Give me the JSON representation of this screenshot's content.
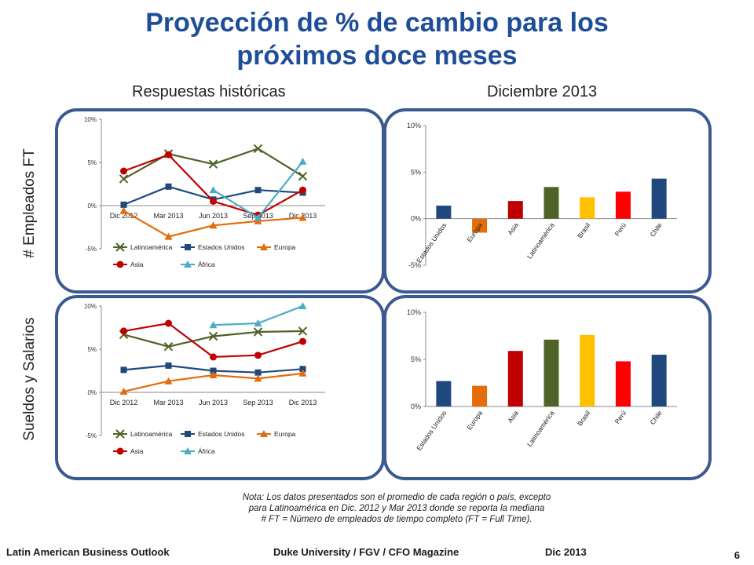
{
  "title_line1": "Proyección de % de cambio para los",
  "title_line2": "próximos doce meses",
  "left_header": "Respuestas históricas",
  "right_header": "Diciembre 2013",
  "row_label_top": "# Empleados FT",
  "row_label_bottom": "Sueldos y Salarios",
  "note_line1": "Nota:  Los datos presentados son el promedio de cada región o país, excepto",
  "note_line2": "para Latinoamérica en Dic. 2012 y Mar 2013 donde se reporta la mediana",
  "note_line3": "# FT = Número de empleados de tiempo completo (FT = Full Time).",
  "footer": {
    "left": "Latin American Business Outlook",
    "middle": "Duke University / FGV / CFO Magazine",
    "date": "Dic 2013",
    "page": "6"
  },
  "chart_data": [
    {
      "type": "line",
      "id": "employees-history",
      "categories": [
        "Dic 2012",
        "Mar 2013",
        "Jun 2013",
        "Sep 2013",
        "Dic 2013"
      ],
      "ylim": [
        -5,
        10
      ],
      "yticks": [
        "-5%",
        "0%",
        "5%",
        "10%"
      ],
      "series": [
        {
          "name": "Latinoamérica",
          "color": "#4f6228",
          "marker": "x",
          "values": [
            3.1,
            6.0,
            4.8,
            6.6,
            3.4
          ]
        },
        {
          "name": "Estados Unidos",
          "color": "#1f497d",
          "marker": "square",
          "values": [
            0.1,
            2.2,
            0.7,
            1.8,
            1.5
          ]
        },
        {
          "name": "Europa",
          "color": "#e46c0a",
          "marker": "triangle",
          "values": [
            -0.6,
            -3.6,
            -2.3,
            -1.8,
            -1.4
          ]
        },
        {
          "name": "Asia",
          "color": "#c00000",
          "marker": "circle",
          "values": [
            4.0,
            5.9,
            0.5,
            -1.1,
            1.8
          ]
        },
        {
          "name": "África",
          "color": "#4bacc6",
          "marker": "triangle",
          "values": [
            null,
            null,
            1.8,
            -1.4,
            5.1
          ]
        }
      ]
    },
    {
      "type": "bar",
      "id": "employees-dec2013",
      "categories": [
        "Estados Unidos",
        "Europa",
        "Asia",
        "Latinoamérica",
        "Brasil",
        "Perú",
        "Chile"
      ],
      "ylim": [
        -5,
        10
      ],
      "yticks": [
        "-5%",
        "0%",
        "5%",
        "10%"
      ],
      "values": [
        1.4,
        -1.5,
        1.9,
        3.4,
        2.3,
        2.9,
        4.3
      ],
      "colors": [
        "#1f497d",
        "#e46c0a",
        "#c00000",
        "#4f6228",
        "#ffc000",
        "#ff0000",
        "#1f497d"
      ]
    },
    {
      "type": "line",
      "id": "wages-history",
      "categories": [
        "Dic 2012",
        "Mar 2013",
        "Jun 2013",
        "Sep 2013",
        "Dic 2013"
      ],
      "ylim": [
        -5,
        10
      ],
      "yticks": [
        "-5%",
        "0%",
        "5%",
        "10%"
      ],
      "series": [
        {
          "name": "Latinoamérica",
          "color": "#4f6228",
          "marker": "x",
          "values": [
            6.7,
            5.3,
            6.5,
            7.0,
            7.1
          ]
        },
        {
          "name": "Estados Unidos",
          "color": "#1f497d",
          "marker": "square",
          "values": [
            2.6,
            3.1,
            2.5,
            2.3,
            2.7
          ]
        },
        {
          "name": "Europa",
          "color": "#e46c0a",
          "marker": "triangle",
          "values": [
            0.1,
            1.3,
            2.0,
            1.6,
            2.2
          ]
        },
        {
          "name": "Asia",
          "color": "#c00000",
          "marker": "circle",
          "values": [
            7.1,
            8.0,
            4.1,
            4.3,
            5.9
          ]
        },
        {
          "name": "África",
          "color": "#4bacc6",
          "marker": "triangle",
          "values": [
            null,
            null,
            7.8,
            8.0,
            10.0
          ]
        }
      ]
    },
    {
      "type": "bar",
      "id": "wages-dec2013",
      "categories": [
        "Estados Unidos",
        "Europa",
        "Asia",
        "Latinoamérica",
        "Brasil",
        "Perú",
        "Chile"
      ],
      "ylim": [
        0,
        10
      ],
      "yticks": [
        "0%",
        "5%",
        "10%"
      ],
      "values": [
        2.7,
        2.2,
        5.9,
        7.1,
        7.6,
        4.8,
        5.5
      ],
      "colors": [
        "#1f497d",
        "#e46c0a",
        "#c00000",
        "#4f6228",
        "#ffc000",
        "#ff0000",
        "#1f497d"
      ]
    }
  ]
}
